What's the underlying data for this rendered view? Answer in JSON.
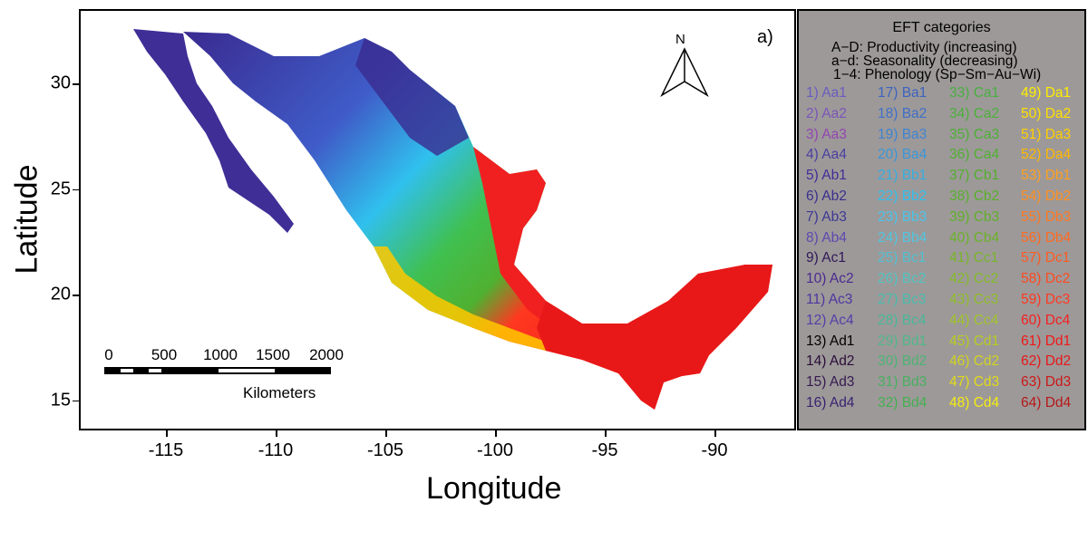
{
  "panel_label": "a)",
  "north_label": "N",
  "axes": {
    "xlabel": "Longitude",
    "ylabel": "Latitude",
    "xticks": [
      "-115",
      "-110",
      "-105",
      "-100",
      "-95",
      "-90"
    ],
    "yticks": [
      "30",
      "25",
      "20",
      "15"
    ]
  },
  "scale_bar": {
    "labels": [
      "0",
      "500",
      "1000",
      "1500",
      "2000"
    ],
    "unit": "Kilometers"
  },
  "legend": {
    "title": "EFT categories",
    "lines": [
      "A−D: Productivity (increasing)",
      "a−d: Seasonality (decreasing)",
      "1−4: Phenology (Sp−Sm−Au−Wi)"
    ],
    "items": [
      {
        "label": "1) Aa1",
        "color": "#6a5cc0"
      },
      {
        "label": "2) Aa2",
        "color": "#7c55b8"
      },
      {
        "label": "3) Aa3",
        "color": "#9245b0"
      },
      {
        "label": "4) Aa4",
        "color": "#4a40a0"
      },
      {
        "label": "5) Ab1",
        "color": "#3e2e96"
      },
      {
        "label": "6) Ab2",
        "color": "#3a2f8c"
      },
      {
        "label": "7) Ab3",
        "color": "#3c3894"
      },
      {
        "label": "8) Ab4",
        "color": "#5a4ab0"
      },
      {
        "label": "9) Ac1",
        "color": "#301858"
      },
      {
        "label": "10) Ac2",
        "color": "#4a2a90"
      },
      {
        "label": "11) Ac3",
        "color": "#4f35a0"
      },
      {
        "label": "12) Ac4",
        "color": "#5040a8"
      },
      {
        "label": "13) Ad1",
        "color": "#000000"
      },
      {
        "label": "14) Ad2",
        "color": "#2a0c38"
      },
      {
        "label": "15) Ad3",
        "color": "#361a50"
      },
      {
        "label": "16) Ad4",
        "color": "#3a2270"
      },
      {
        "label": "17) Ba1",
        "color": "#3c64c0"
      },
      {
        "label": "18) Ba2",
        "color": "#3f70c8"
      },
      {
        "label": "19) Ba3",
        "color": "#3f84d0"
      },
      {
        "label": "20) Ba4",
        "color": "#3a96d8"
      },
      {
        "label": "21) Bb1",
        "color": "#36aee0"
      },
      {
        "label": "22) Bb2",
        "color": "#30c0ee"
      },
      {
        "label": "23) Bb3",
        "color": "#48c4e8"
      },
      {
        "label": "24) Bb4",
        "color": "#50c6e0"
      },
      {
        "label": "25) Bc1",
        "color": "#50c0d0"
      },
      {
        "label": "26) Bc2",
        "color": "#50c4c0"
      },
      {
        "label": "27) Bc3",
        "color": "#48bcaa"
      },
      {
        "label": "28) Bc4",
        "color": "#48b898"
      },
      {
        "label": "29) Bd1",
        "color": "#50b888"
      },
      {
        "label": "30) Bd2",
        "color": "#4cb474"
      },
      {
        "label": "31) Bd3",
        "color": "#48b060"
      },
      {
        "label": "32) Bd4",
        "color": "#44b050"
      },
      {
        "label": "33) Ca1",
        "color": "#48b040"
      },
      {
        "label": "34) Ca2",
        "color": "#4cb03a"
      },
      {
        "label": "35) Ca3",
        "color": "#4cb034"
      },
      {
        "label": "36) Ca4",
        "color": "#50b030"
      },
      {
        "label": "37) Cb1",
        "color": "#52b02c"
      },
      {
        "label": "38) Cb2",
        "color": "#58b02a"
      },
      {
        "label": "39) Cb3",
        "color": "#60b028"
      },
      {
        "label": "40) Cb4",
        "color": "#6cb228"
      },
      {
        "label": "41) Cc1",
        "color": "#78b628"
      },
      {
        "label": "42) Cc2",
        "color": "#84ba28"
      },
      {
        "label": "43) Cc3",
        "color": "#90be28"
      },
      {
        "label": "44) Cc4",
        "color": "#a0c428"
      },
      {
        "label": "45) Cd1",
        "color": "#b8cc20"
      },
      {
        "label": "46) Cd2",
        "color": "#d0d420"
      },
      {
        "label": "47) Cd3",
        "color": "#e0dc18"
      },
      {
        "label": "48) Cd4",
        "color": "#f4ec10"
      },
      {
        "label": "49) Da1",
        "color": "#ffee00"
      },
      {
        "label": "50) Da2",
        "color": "#ffe000"
      },
      {
        "label": "51) Da3",
        "color": "#ffd000"
      },
      {
        "label": "52) Da4",
        "color": "#ffb800"
      },
      {
        "label": "53) Db1",
        "color": "#ffa020"
      },
      {
        "label": "54) Db2",
        "color": "#ff9020"
      },
      {
        "label": "55) Db3",
        "color": "#ff7820"
      },
      {
        "label": "56) Db4",
        "color": "#ff6a20"
      },
      {
        "label": "57) Dc1",
        "color": "#ff5a20"
      },
      {
        "label": "58) Dc2",
        "color": "#ff4a20"
      },
      {
        "label": "59) Dc3",
        "color": "#ff3820"
      },
      {
        "label": "60) Dc4",
        "color": "#f52020"
      },
      {
        "label": "61) Dd1",
        "color": "#f01818"
      },
      {
        "label": "62) Dd2",
        "color": "#e81818"
      },
      {
        "label": "63) Dd3",
        "color": "#cc1818"
      },
      {
        "label": "64) Dd4",
        "color": "#b81818"
      }
    ]
  }
}
